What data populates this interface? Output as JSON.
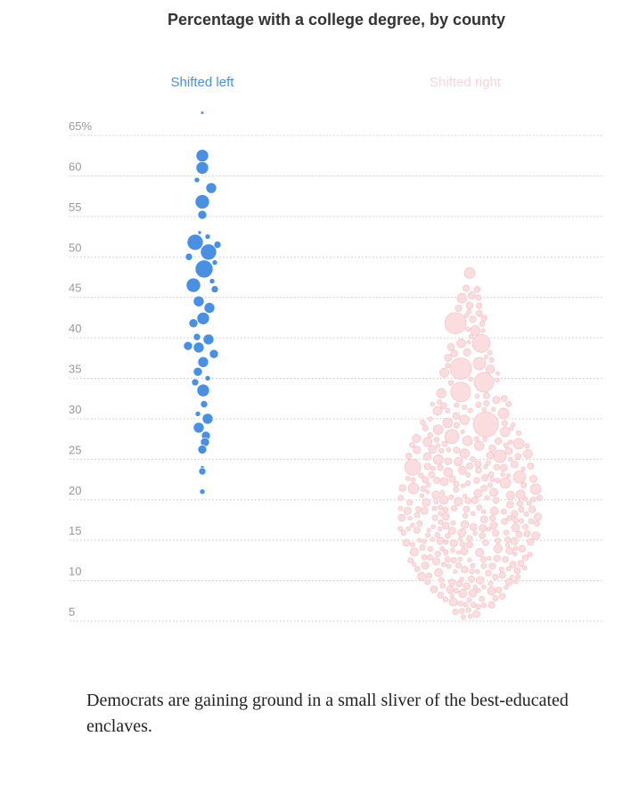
{
  "chart_data": {
    "type": "scatter",
    "subtype": "beeswarm",
    "title": "Percentage with a college degree, by county",
    "xlabel": "",
    "ylabel": "",
    "ylim": [
      5,
      68
    ],
    "y_ticks": [
      {
        "value": 65,
        "label": "65%"
      },
      {
        "value": 60,
        "label": "60"
      },
      {
        "value": 55,
        "label": "55"
      },
      {
        "value": 50,
        "label": "50"
      },
      {
        "value": 45,
        "label": "45"
      },
      {
        "value": 40,
        "label": "40"
      },
      {
        "value": 35,
        "label": "35"
      },
      {
        "value": 30,
        "label": "30"
      },
      {
        "value": 25,
        "label": "25"
      },
      {
        "value": 20,
        "label": "20"
      },
      {
        "value": 15,
        "label": "15"
      },
      {
        "value": 10,
        "label": "10"
      },
      {
        "value": 5,
        "label": "5"
      }
    ],
    "grid": true,
    "grid_style": "dotted",
    "series": [
      {
        "name": "Shifted left",
        "color": "#4a90e2",
        "values": [
          67.8,
          62.5,
          61.0,
          59.5,
          58.5,
          56.8,
          55.2,
          53.0,
          52.5,
          51.8,
          51.5,
          50.6,
          50.0,
          49.3,
          48.5,
          47.0,
          46.5,
          46.0,
          44.5,
          43.7,
          42.4,
          41.8,
          40.1,
          39.8,
          39.0,
          38.8,
          38.0,
          37.0,
          35.8,
          35.0,
          34.5,
          33.5,
          31.8,
          30.6,
          30.0,
          29.2,
          28.9,
          27.9,
          27.1,
          26.2,
          24.0,
          23.5,
          21.0
        ]
      },
      {
        "name": "Shifted right",
        "color": "#fadadd",
        "min": 5.5,
        "max": 48.0,
        "notable_values": [
          48.0,
          44.0,
          41.8,
          39.3,
          36.2,
          33.3,
          29.3,
          27.8,
          24.0,
          22.8,
          21.3
        ],
        "distribution": "thousands of counties, densest between 12 and 22 percent"
      }
    ]
  },
  "caption": "Democrats are gaining ground in a small sliver of the best-educated enclaves."
}
